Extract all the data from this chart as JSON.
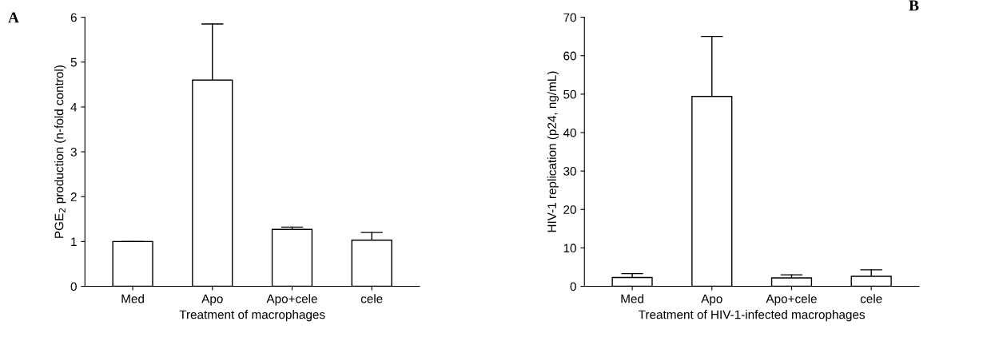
{
  "chart_data": [
    {
      "type": "bar",
      "title": "A",
      "xlabel": "Treatment of macrophages",
      "ylabel": "PGE$_{2}$ production (n-fold control)",
      "categories": [
        "Med",
        "Apo",
        "Apo+cele",
        "cele"
      ],
      "values": [
        1.0,
        4.6,
        1.27,
        1.03
      ],
      "errors": [
        [
          1.0,
          1.0
        ],
        [
          4.6,
          5.85
        ],
        [
          1.27,
          1.32
        ],
        [
          1.03,
          1.2
        ]
      ],
      "color": "#ffffff",
      "ylim": [
        0,
        6
      ],
      "yticks": [
        0,
        1,
        2,
        3,
        4,
        5,
        6
      ],
      "grid": false
    },
    {
      "type": "bar",
      "title": "B",
      "xlabel": "Treatment of HIV-1-infected macrophages",
      "ylabel": "HIV-1 replication (p24, ng/mL)",
      "categories": [
        "Med",
        "Apo",
        "Apo+cele",
        "cele"
      ],
      "values": [
        2.3,
        49.4,
        2.2,
        2.6
      ],
      "errors": [
        [
          2.3,
          3.3
        ],
        [
          49.4,
          65
        ],
        [
          2.2,
          3.0
        ],
        [
          2.6,
          4.3
        ]
      ],
      "color": "#ffffff",
      "ylim": [
        0,
        70
      ],
      "yticks": [
        0,
        10,
        20,
        30,
        40,
        50,
        60,
        70
      ],
      "grid": false
    }
  ]
}
